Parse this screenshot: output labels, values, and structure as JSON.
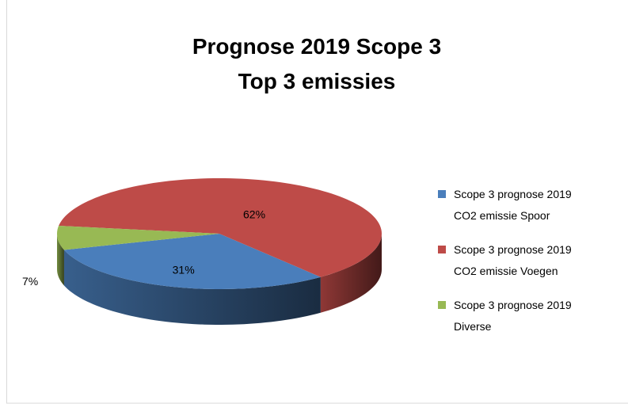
{
  "chart_data": {
    "type": "pie3d",
    "title": [
      "Prognose 2019 Scope 3",
      "Top 3 emissies"
    ],
    "series": [
      {
        "name": "Scope 3 prognose 2019 CO2 emissie Spoor",
        "color": "#4a7ebb",
        "values": [
          31
        ],
        "value_labels": [
          "31%"
        ]
      },
      {
        "name": "Scope 3 prognose 2019 CO2 emissie Voegen",
        "color": "#be4b48",
        "values": [
          62
        ],
        "value_labels": [
          "62%"
        ]
      },
      {
        "name": "Scope 3 prognose 2019 Diverse",
        "color": "#98b954",
        "values": [
          7
        ],
        "value_labels": [
          "7%"
        ]
      }
    ],
    "legend": "right"
  }
}
